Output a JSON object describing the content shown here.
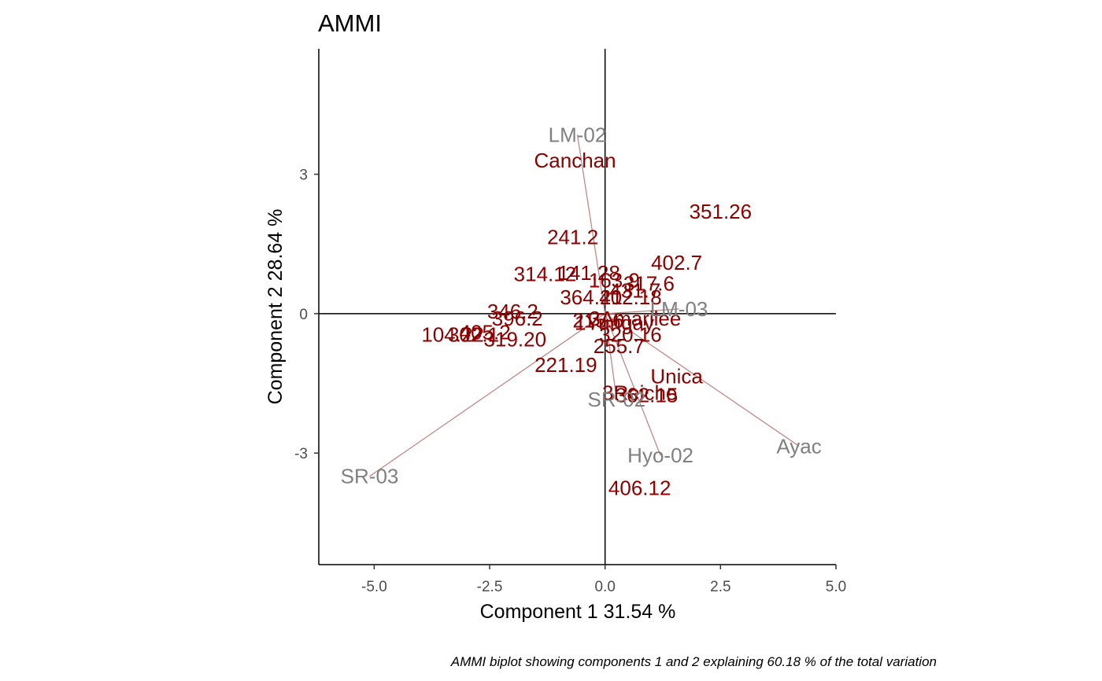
{
  "chart_data": {
    "type": "scatter",
    "title": "AMMI",
    "xlabel": "Component 1 31.54 %",
    "ylabel": "Component 2 28.64 %",
    "caption": "AMMI biplot showing components 1 and 2 explaining  60.18 % of the total variation",
    "xlim": [
      -6.2,
      5.0
    ],
    "ylim": [
      -5.4,
      5.7
    ],
    "x_ticks": [
      -5.0,
      -2.5,
      0.0,
      2.5,
      5.0
    ],
    "x_tick_labels": [
      "-5.0",
      "-2.5",
      "0.0",
      "2.5",
      "5.0"
    ],
    "y_ticks": [
      -3,
      0,
      3
    ],
    "y_tick_labels": [
      "-3",
      "0",
      "3"
    ],
    "grid": false,
    "reference_lines": {
      "x": 0,
      "y": 0
    },
    "colors": {
      "genotype": "#8b0000",
      "environment": "#808080",
      "vector": "#c08a8a",
      "axis": "#000000"
    },
    "genotypes": [
      {
        "label": "Canchan",
        "x": -0.65,
        "y": 3.3
      },
      {
        "label": "351.26",
        "x": 2.5,
        "y": 2.2
      },
      {
        "label": "241.2",
        "x": -0.7,
        "y": 1.65
      },
      {
        "label": "402.7",
        "x": 1.55,
        "y": 1.1
      },
      {
        "label": "314.12",
        "x": -1.3,
        "y": 0.85
      },
      {
        "label": "141.28",
        "x": -0.35,
        "y": 0.88
      },
      {
        "label": "163.9",
        "x": 0.2,
        "y": 0.72
      },
      {
        "label": "317.6",
        "x": 0.95,
        "y": 0.65
      },
      {
        "label": "431.7",
        "x": 0.65,
        "y": 0.5
      },
      {
        "label": "364.21",
        "x": -0.3,
        "y": 0.35
      },
      {
        "label": "402.18",
        "x": 0.55,
        "y": 0.35
      },
      {
        "label": "346.2",
        "x": -2.0,
        "y": 0.05
      },
      {
        "label": "396.2",
        "x": -1.9,
        "y": -0.1
      },
      {
        "label": "215.6",
        "x": -0.15,
        "y": -0.15
      },
      {
        "label": "3Amarilee",
        "x": 0.65,
        "y": -0.1
      },
      {
        "label": "1Yungay",
        "x": 0.2,
        "y": -0.2
      },
      {
        "label": "320.16",
        "x": 0.55,
        "y": -0.45
      },
      {
        "label": "104.22",
        "x": -3.3,
        "y": -0.45
      },
      {
        "label": "405.2",
        "x": -2.6,
        "y": -0.4
      },
      {
        "label": "302.1",
        "x": -2.85,
        "y": -0.45
      },
      {
        "label": "319.20",
        "x": -1.95,
        "y": -0.55
      },
      {
        "label": "255.7",
        "x": 0.3,
        "y": -0.7
      },
      {
        "label": "221.19",
        "x": -0.85,
        "y": -1.1
      },
      {
        "label": "Unica",
        "x": 1.55,
        "y": -1.35
      },
      {
        "label": "362.15",
        "x": 0.9,
        "y": -1.75
      },
      {
        "label": "3Reiche",
        "x": 0.75,
        "y": -1.7
      },
      {
        "label": "406.12",
        "x": 0.75,
        "y": -3.75
      }
    ],
    "environments": [
      {
        "label": "LM-02",
        "x": -0.6,
        "y": 3.85
      },
      {
        "label": "LM-03",
        "x": 1.6,
        "y": 0.1
      },
      {
        "label": "SR-02",
        "x": 0.25,
        "y": -1.85
      },
      {
        "label": "Ayac",
        "x": 4.2,
        "y": -2.85
      },
      {
        "label": "Hyo-02",
        "x": 1.2,
        "y": -3.05
      },
      {
        "label": "SR-03",
        "x": -5.1,
        "y": -3.5
      }
    ]
  }
}
